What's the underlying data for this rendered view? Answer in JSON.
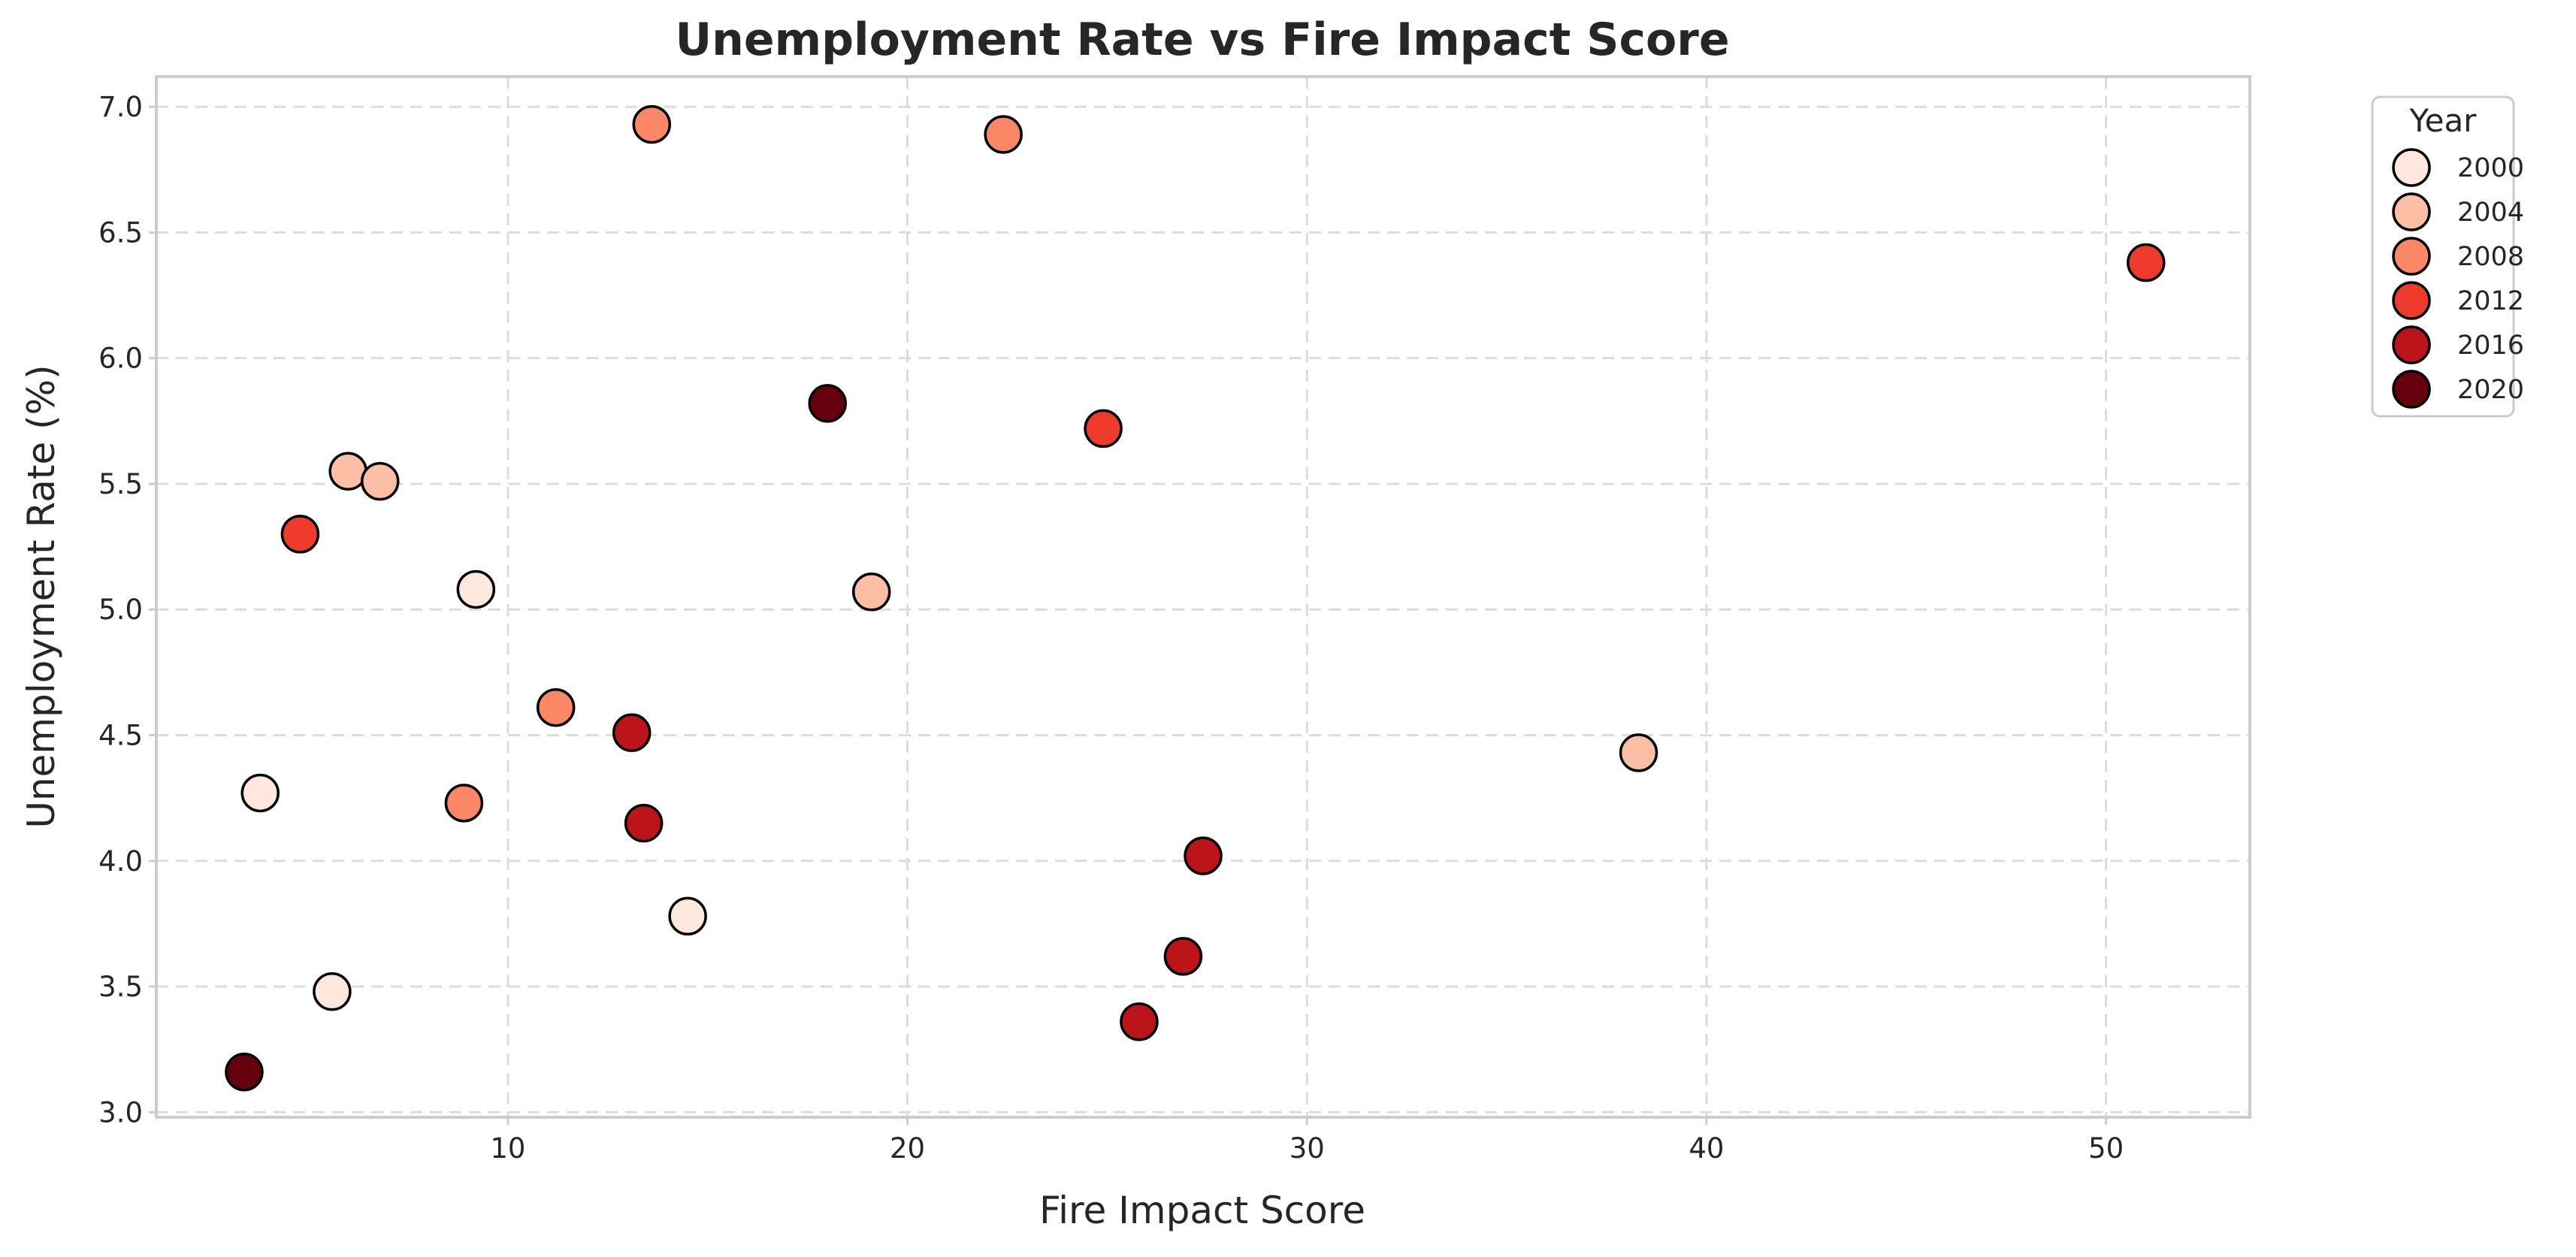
{
  "chart_data": {
    "type": "scatter",
    "title": "Unemployment Rate vs Fire Impact Score",
    "xlabel": "Fire Impact Score",
    "ylabel": "Unemployment Rate (%)",
    "xlim": [
      1.2,
      53.6
    ],
    "ylim": [
      2.98,
      7.12
    ],
    "xticks": [
      10,
      20,
      30,
      40,
      50
    ],
    "xtick_labels": [
      "10",
      "20",
      "30",
      "40",
      "50"
    ],
    "yticks": [
      3.0,
      3.5,
      4.0,
      4.5,
      5.0,
      5.5,
      6.0,
      6.5,
      7.0
    ],
    "ytick_labels": [
      "3.0",
      "3.5",
      "4.0",
      "4.5",
      "5.0",
      "5.5",
      "6.0",
      "6.5",
      "7.0"
    ],
    "grid": true,
    "legend": {
      "title": "Year",
      "position": "outside-top-right",
      "entries": [
        {
          "label": "2000",
          "color": "#fee8dd"
        },
        {
          "label": "2004",
          "color": "#fcbea5"
        },
        {
          "label": "2008",
          "color": "#fb8767"
        },
        {
          "label": "2012",
          "color": "#ef3b2c"
        },
        {
          "label": "2016",
          "color": "#bb151a"
        },
        {
          "label": "2020",
          "color": "#67000d"
        }
      ]
    },
    "series": [
      {
        "name": "2000",
        "color": "#fee8dd",
        "points": [
          {
            "x": 3.8,
            "y": 4.27
          },
          {
            "x": 5.6,
            "y": 3.48
          },
          {
            "x": 9.2,
            "y": 5.08
          },
          {
            "x": 14.5,
            "y": 3.78
          }
        ]
      },
      {
        "name": "2004",
        "color": "#fcbea5",
        "points": [
          {
            "x": 6.0,
            "y": 5.55
          },
          {
            "x": 6.8,
            "y": 5.51
          },
          {
            "x": 19.1,
            "y": 5.07
          },
          {
            "x": 38.3,
            "y": 4.43
          }
        ]
      },
      {
        "name": "2008",
        "color": "#fb8767",
        "points": [
          {
            "x": 8.9,
            "y": 4.23
          },
          {
            "x": 11.2,
            "y": 4.61
          },
          {
            "x": 13.6,
            "y": 6.93
          },
          {
            "x": 22.4,
            "y": 6.89
          }
        ]
      },
      {
        "name": "2012",
        "color": "#ef3b2c",
        "points": [
          {
            "x": 4.8,
            "y": 5.3
          },
          {
            "x": 24.9,
            "y": 5.72
          },
          {
            "x": 51.0,
            "y": 6.38
          }
        ]
      },
      {
        "name": "2016",
        "color": "#bb151a",
        "points": [
          {
            "x": 13.1,
            "y": 4.51
          },
          {
            "x": 13.4,
            "y": 4.15
          },
          {
            "x": 25.8,
            "y": 3.36
          },
          {
            "x": 26.9,
            "y": 3.62
          },
          {
            "x": 27.4,
            "y": 4.02
          }
        ]
      },
      {
        "name": "2020",
        "color": "#67000d",
        "points": [
          {
            "x": 3.4,
            "y": 3.16
          },
          {
            "x": 18.0,
            "y": 5.82
          }
        ]
      }
    ]
  }
}
